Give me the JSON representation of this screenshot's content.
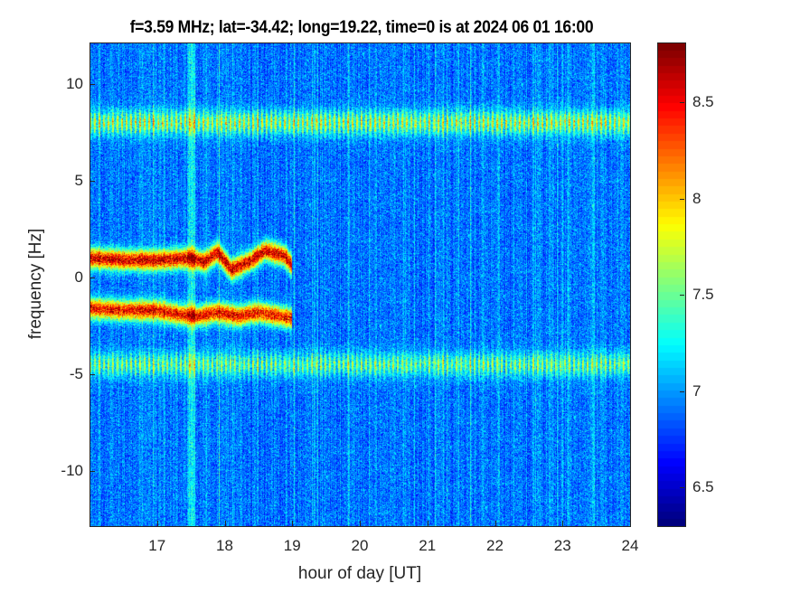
{
  "chart_data": {
    "type": "heatmap",
    "title": "f=3.59 MHz;  lat=-34.42; long=19.22, time=0 is at 2024 06 01 16:00",
    "xlabel": "hour of day [UT]",
    "ylabel": "frequency [Hz]",
    "xlim": [
      16,
      24
    ],
    "ylim": [
      -12.85,
      12.15
    ],
    "xticks": [
      "17",
      "18",
      "19",
      "20",
      "21",
      "22",
      "23",
      "24"
    ],
    "xtick_values": [
      17,
      18,
      19,
      20,
      21,
      22,
      23,
      24
    ],
    "yticks": [
      "10",
      "5",
      "0",
      "-5",
      "-10"
    ],
    "ytick_values": [
      10,
      5,
      0,
      -5,
      -10
    ],
    "colorbar": {
      "colormap": "jet",
      "clim": [
        6.3,
        8.81
      ],
      "ticks": [
        "8.5",
        "8",
        "7.5",
        "7",
        "6.5"
      ],
      "tick_values": [
        8.5,
        8,
        7.5,
        7,
        6.5
      ]
    },
    "background_level": 6.9,
    "features": [
      {
        "name": "upper Doppler trace",
        "x": [
          16.0,
          16.5,
          17.0,
          17.5,
          17.7,
          17.9,
          18.1,
          18.4,
          18.6,
          18.9,
          19.0
        ],
        "y": [
          1.0,
          0.9,
          0.9,
          1.0,
          0.8,
          1.3,
          0.4,
          0.9,
          1.4,
          1.1,
          0.6
        ],
        "level": 8.6
      },
      {
        "name": "lower Doppler trace",
        "x": [
          16.0,
          16.5,
          17.0,
          17.3,
          17.6,
          17.9,
          18.2,
          18.5,
          18.8,
          19.0
        ],
        "y": [
          -1.6,
          -1.7,
          -1.7,
          -1.9,
          -2.0,
          -1.8,
          -2.0,
          -1.8,
          -2.0,
          -2.1
        ],
        "level": 8.5
      },
      {
        "name": "band",
        "x": [
          16,
          24
        ],
        "y": [
          8.0,
          8.0
        ],
        "level": 7.9
      },
      {
        "name": "band",
        "x": [
          16,
          24
        ],
        "y": [
          -4.5,
          -4.5
        ],
        "level": 7.7
      }
    ]
  }
}
